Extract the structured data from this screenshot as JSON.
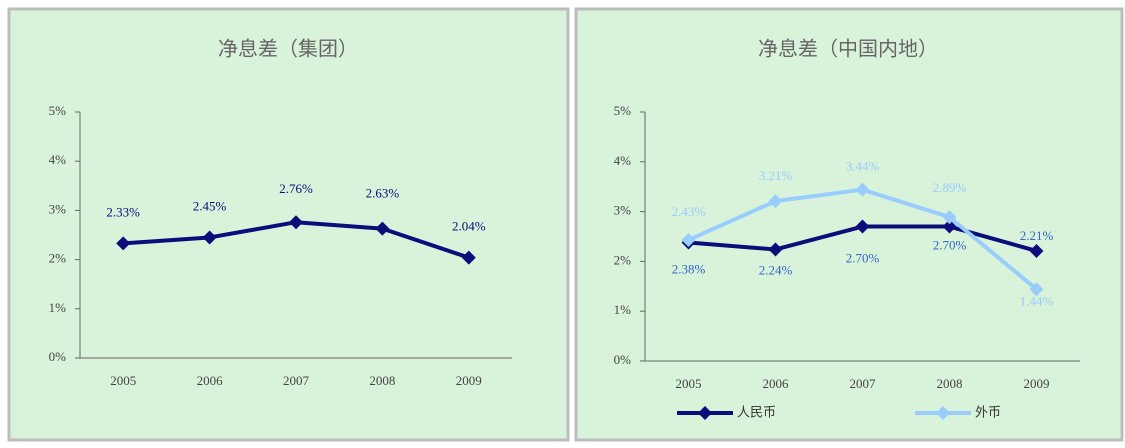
{
  "chart_data": [
    {
      "type": "line",
      "title": "净息差（集团）",
      "categories": [
        "2005",
        "2006",
        "2007",
        "2008",
        "2009"
      ],
      "values": [
        2.33,
        2.45,
        2.76,
        2.63,
        2.04
      ],
      "value_labels": [
        "2.33%",
        "2.45%",
        "2.76%",
        "2.63%",
        "2.04%"
      ],
      "color": "#0c0c7a",
      "ylim": [
        0,
        5
      ],
      "yticks": [
        {
          "value": 0,
          "label": "0%"
        },
        {
          "value": 1,
          "label": "1%"
        },
        {
          "value": 2,
          "label": "2%"
        },
        {
          "value": 3,
          "label": "3%"
        },
        {
          "value": 4,
          "label": "4%"
        },
        {
          "value": 5,
          "label": "5%"
        }
      ]
    },
    {
      "type": "line",
      "title": "净息差（中国内地）",
      "categories": [
        "2005",
        "2006",
        "2007",
        "2008",
        "2009"
      ],
      "series": [
        {
          "name": "人民币",
          "color": "#0c0c7a",
          "values": [
            2.38,
            2.24,
            2.7,
            2.7,
            2.21
          ],
          "value_labels": [
            "2.38%",
            "2.24%",
            "2.70%",
            "2.70%",
            "2.21%"
          ]
        },
        {
          "name": "外币",
          "color": "#99ccff",
          "values": [
            2.43,
            3.21,
            3.44,
            2.89,
            1.44
          ],
          "value_labels": [
            "2.43%",
            "3.21%",
            "3.44%",
            "2.89%",
            "1.44%"
          ]
        }
      ],
      "ylim": [
        0,
        5
      ],
      "yticks": [
        {
          "value": 0,
          "label": "0%"
        },
        {
          "value": 1,
          "label": "1%"
        },
        {
          "value": 2,
          "label": "2%"
        },
        {
          "value": 3,
          "label": "3%"
        },
        {
          "value": 4,
          "label": "4%"
        },
        {
          "value": 5,
          "label": "5%"
        }
      ],
      "legend": "bottom"
    }
  ]
}
